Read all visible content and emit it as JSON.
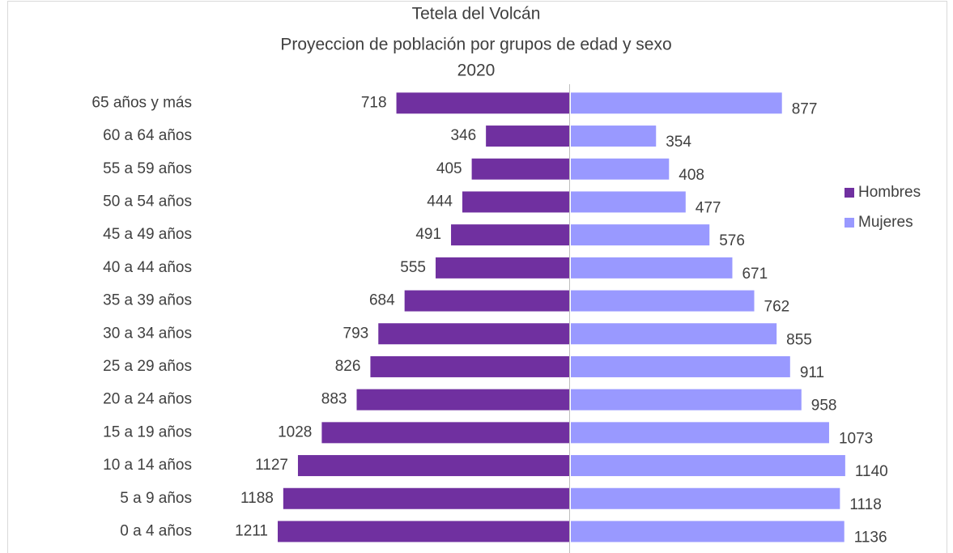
{
  "chart_data": {
    "type": "bar",
    "orientation": "horizontal",
    "layout": "pyramid",
    "title": [
      "Tetela del Volcán",
      "Proyeccion de población por grupos de edad y sexo",
      "2020"
    ],
    "categories": [
      "65 años y más",
      "60 a 64 años",
      "55 a 59 años",
      "50 a 54 años",
      "45 a 49 años",
      "40 a 44 años",
      "35 a 39 años",
      "30 a 34 años",
      "25 a 29 años",
      "20 a 24 años",
      "15 a 19 años",
      "10 a 14 años",
      "5 a 9 años",
      "0 a 4 años"
    ],
    "series": [
      {
        "name": "Hombres",
        "color": "#7030a0",
        "values": [
          718,
          346,
          405,
          444,
          491,
          555,
          684,
          793,
          826,
          883,
          1028,
          1127,
          1188,
          1211
        ]
      },
      {
        "name": "Mujeres",
        "color": "#9999ff",
        "values": [
          877,
          354,
          408,
          477,
          576,
          671,
          762,
          855,
          911,
          958,
          1073,
          1140,
          1118,
          1136
        ]
      }
    ],
    "legend": "right"
  }
}
